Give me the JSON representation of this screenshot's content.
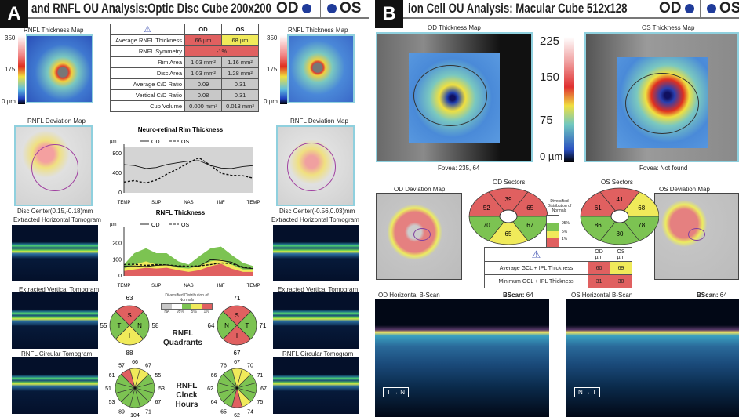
{
  "colors": {
    "red": "#e06060",
    "yellow": "#f0ea5a",
    "green": "#7cc352",
    "gray": "#c8c8c8",
    "eye_dot": "#1f3b9a"
  },
  "panelA": {
    "badge": "A",
    "title": "and RNFL OU Analysis:Optic Disc Cube 200x200",
    "od": "OD",
    "os": "OS",
    "thickness_map_title": "RNFL Thickness Map",
    "scale": {
      "max": "350",
      "mid": "175",
      "min": "0 µm"
    },
    "table": {
      "headers": [
        "OD",
        "OS"
      ],
      "rows": [
        {
          "label": "Average RNFL Thickness",
          "od": "66 µm",
          "os": "68 µm"
        },
        {
          "label": "RNFL Symmetry",
          "value": "-1%"
        },
        {
          "label": "Rim Area",
          "od": "1.03 mm²",
          "os": "1.16 mm²"
        },
        {
          "label": "Disc Area",
          "od": "1.03 mm²",
          "os": "1.28 mm²"
        },
        {
          "label": "Average C/D Ratio",
          "od": "0.09",
          "os": "0.31"
        },
        {
          "label": "Vertical C/D Ratio",
          "od": "0.08",
          "os": "0.31"
        },
        {
          "label": "Cup Volume",
          "od": "0.000 mm³",
          "os": "0.013 mm³"
        }
      ]
    },
    "deviation_map_title": "RNFL Deviation Map",
    "od_disc_center": "Disc Center(0.15,-0.18)mm",
    "os_disc_center": "Disc Center(-0.56,0.03)mm",
    "horiz_tomo": "Extracted Horizontal Tomogram",
    "vert_tomo": "Extracted Vertical Tomogram",
    "circ_tomo": "RNFL Circular Tomogram",
    "legend": {
      "title": "Diversified Distribution of Normals",
      "labels": [
        "NA",
        "95%",
        "5%",
        "1%"
      ]
    },
    "quadrants_label": [
      "RNFL",
      "Quadrants"
    ],
    "clock_label": [
      "RNFL",
      "Clock",
      "Hours"
    ],
    "od_quadrants": [
      {
        "name": "S",
        "value": "63",
        "color": "red"
      },
      {
        "name": "N",
        "value": "58",
        "color": "green"
      },
      {
        "name": "I",
        "value": "88",
        "color": "yellow"
      },
      {
        "name": "T",
        "value": "55",
        "color": "green"
      }
    ],
    "os_quadrants": [
      {
        "name": "S",
        "value": "71",
        "color": "red"
      },
      {
        "name": "T",
        "value": "71",
        "color": "green"
      },
      {
        "name": "I",
        "value": "67",
        "color": "red"
      },
      {
        "name": "N",
        "value": "64",
        "color": "green"
      }
    ],
    "od_clock": [
      {
        "v": "66",
        "c": "yellow"
      },
      {
        "v": "67",
        "c": "yellow"
      },
      {
        "v": "55",
        "c": "green"
      },
      {
        "v": "53",
        "c": "green"
      },
      {
        "v": "67",
        "c": "green"
      },
      {
        "v": "71",
        "c": "green"
      },
      {
        "v": "104",
        "c": "green"
      },
      {
        "v": "89",
        "c": "green"
      },
      {
        "v": "53",
        "c": "green"
      },
      {
        "v": "51",
        "c": "green"
      },
      {
        "v": "61",
        "c": "green"
      },
      {
        "v": "57",
        "c": "red"
      }
    ],
    "os_clock": [
      {
        "v": "67",
        "c": "yellow"
      },
      {
        "v": "70",
        "c": "yellow"
      },
      {
        "v": "71",
        "c": "green"
      },
      {
        "v": "67",
        "c": "green"
      },
      {
        "v": "75",
        "c": "green"
      },
      {
        "v": "74",
        "c": "yellow"
      },
      {
        "v": "62",
        "c": "red"
      },
      {
        "v": "65",
        "c": "green"
      },
      {
        "v": "64",
        "c": "green"
      },
      {
        "v": "62",
        "c": "green"
      },
      {
        "v": "66",
        "c": "green"
      },
      {
        "v": "76",
        "c": "green"
      }
    ]
  },
  "chart_data": [
    {
      "type": "line",
      "title": "Neuro-retinal Rim Thickness",
      "ylabel": "µm",
      "ylim": [
        0,
        900
      ],
      "yticks": [
        "0",
        "400",
        "800"
      ],
      "categories": [
        "TEMP",
        "SUP",
        "NAS",
        "INF",
        "TEMP"
      ],
      "x": [
        0,
        8,
        17,
        25,
        33,
        42,
        50,
        58,
        67,
        75,
        83,
        92,
        100
      ],
      "series": [
        {
          "name": "OD",
          "style": "solid",
          "values": [
            580,
            560,
            500,
            520,
            580,
            620,
            650,
            660,
            560,
            510,
            500,
            540,
            560
          ]
        },
        {
          "name": "OS",
          "style": "dashed",
          "values": [
            220,
            250,
            200,
            260,
            380,
            500,
            620,
            720,
            560,
            400,
            360,
            350,
            300
          ]
        }
      ]
    },
    {
      "type": "area",
      "title": "RNFL Thickness",
      "ylabel": "µm",
      "ylim": [
        0,
        270
      ],
      "yticks": [
        "0",
        "100",
        "200"
      ],
      "categories": [
        "TEMP",
        "SUP",
        "NAS",
        "INF",
        "TEMP"
      ],
      "x": [
        0,
        8,
        17,
        25,
        33,
        42,
        50,
        58,
        67,
        75,
        83,
        92,
        100
      ],
      "bands": {
        "p95": [
          70,
          140,
          170,
          140,
          140,
          90,
          70,
          120,
          170,
          180,
          130,
          80,
          60
        ],
        "p5": [
          45,
          70,
          90,
          70,
          70,
          50,
          45,
          60,
          90,
          100,
          70,
          40,
          40
        ],
        "p1": [
          30,
          40,
          50,
          45,
          50,
          35,
          25,
          35,
          60,
          75,
          45,
          25,
          25
        ]
      },
      "series": [
        {
          "name": "OD",
          "style": "solid",
          "values": [
            60,
            62,
            58,
            65,
            68,
            60,
            55,
            60,
            100,
            95,
            85,
            50,
            45
          ]
        },
        {
          "name": "OS",
          "style": "dashed",
          "values": [
            70,
            72,
            65,
            70,
            68,
            62,
            60,
            62,
            70,
            80,
            75,
            55,
            45
          ]
        }
      ]
    }
  ],
  "panelB": {
    "badge": "B",
    "title": "ion Cell OU Analysis: Macular Cube 512x128",
    "od": "OD",
    "os": "OS",
    "od_map_title": "OD Thickness Map",
    "os_map_title": "OS Thickness Map",
    "scale": [
      "225",
      "150",
      "75",
      "0 µm"
    ],
    "od_fovea": "Fovea: 235, 64",
    "os_fovea": "Fovea: Not found",
    "od_dev_title": "OD Deviation Map",
    "os_dev_title": "OS Deviation Map",
    "od_sectors_title": "OD Sectors",
    "os_sectors_title": "OS Sectors",
    "od_sectors": [
      {
        "v": "52",
        "c": "red"
      },
      {
        "v": "39",
        "c": "red"
      },
      {
        "v": "65",
        "c": "red"
      },
      {
        "v": "67",
        "c": "green"
      },
      {
        "v": "65",
        "c": "yellow"
      },
      {
        "v": "70",
        "c": "green"
      }
    ],
    "os_sectors": [
      {
        "v": "61",
        "c": "red"
      },
      {
        "v": "41",
        "c": "red"
      },
      {
        "v": "68",
        "c": "yellow"
      },
      {
        "v": "78",
        "c": "green"
      },
      {
        "v": "80",
        "c": "green"
      },
      {
        "v": "86",
        "c": "green"
      }
    ],
    "legend": {
      "title": "Diversified Distribution of Normals",
      "labels": [
        "95%",
        "5%",
        "1%"
      ]
    },
    "table": {
      "headers": [
        "OD µm",
        "OS µm"
      ],
      "rows": [
        {
          "label": "Average GCL + IPL Thickness",
          "od": "60",
          "os": "69",
          "odc": "red",
          "osc": "yellow"
        },
        {
          "label": "Minimum GCL + IPL Thickness",
          "od": "31",
          "os": "30",
          "odc": "red",
          "osc": "red"
        }
      ]
    },
    "od_bscan_title": "OD Horizontal B-Scan",
    "os_bscan_title": "OS Horizontal B-Scan",
    "bscan_label": "BScan:",
    "od_bscan": "64",
    "os_bscan": "64",
    "orient_od": [
      "T",
      "N"
    ],
    "orient_os": [
      "N",
      "T"
    ]
  }
}
